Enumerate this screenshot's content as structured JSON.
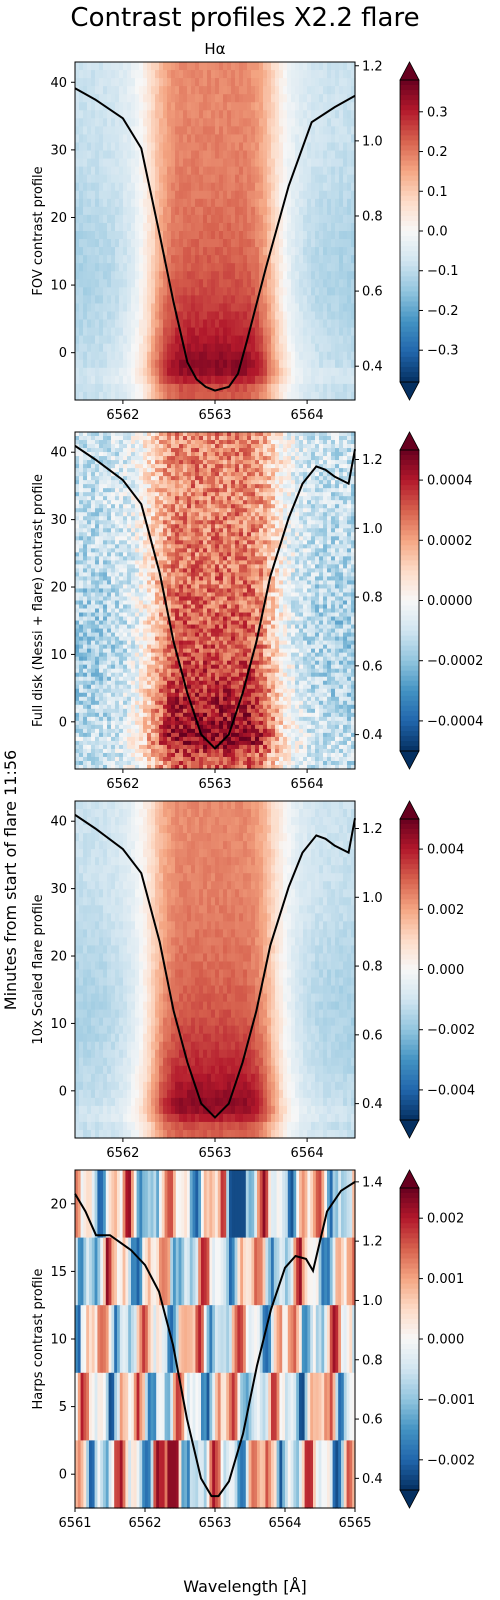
{
  "figure": {
    "title": "Contrast profiles X2.2 flare",
    "shared_ylabel": "Minutes from start of flare 11:56",
    "shared_xlabel": "Wavelength [Å]"
  },
  "chart_data": [
    {
      "type": "heatmap",
      "title": "Hα",
      "ylabel": "FOV contrast profile",
      "xlabel": "",
      "xlim": [
        6561.48,
        6564.52
      ],
      "ylim": [
        -7,
        43
      ],
      "xticks": [
        "6562",
        "6563",
        "6564"
      ],
      "yticks": [
        "0",
        "10",
        "20",
        "30",
        "40"
      ],
      "right_ylim": [
        0.31,
        1.21
      ],
      "right_yticks": [
        "0.4",
        "0.6",
        "0.8",
        "1.0",
        "1.2"
      ],
      "colorbar": {
        "min": -0.38,
        "max": 0.38,
        "cmap": "RdBu_r",
        "extend": "both",
        "ticks": [
          "−0.3",
          "−0.2",
          "−0.1",
          "0.0",
          "0.1",
          "0.2",
          "0.3"
        ],
        "tick_values": [
          -0.3,
          -0.2,
          -0.1,
          0.0,
          0.1,
          0.2,
          0.3
        ]
      },
      "profile": {
        "name": "line profile",
        "color": "#000000",
        "x": [
          6561.48,
          6561.7,
          6562.0,
          6562.2,
          6562.4,
          6562.55,
          6562.7,
          6562.8,
          6562.9,
          6563.0,
          6563.15,
          6563.25,
          6563.35,
          6563.55,
          6563.8,
          6564.05,
          6564.3,
          6564.52
        ],
        "y": [
          1.14,
          1.11,
          1.06,
          0.98,
          0.75,
          0.57,
          0.41,
          0.365,
          0.345,
          0.335,
          0.345,
          0.38,
          0.47,
          0.66,
          0.88,
          1.05,
          1.09,
          1.12
        ]
      }
    },
    {
      "type": "heatmap",
      "title": "",
      "ylabel": "Full disk (Nessi + flare) contrast profile",
      "xlabel": "",
      "xlim": [
        6561.48,
        6564.52
      ],
      "ylim": [
        -7,
        43
      ],
      "xticks": [
        "6562",
        "6563",
        "6564"
      ],
      "yticks": [
        "0",
        "10",
        "20",
        "30",
        "40"
      ],
      "right_ylim": [
        0.3,
        1.28
      ],
      "right_yticks": [
        "0.4",
        "0.6",
        "0.8",
        "1.0",
        "1.2"
      ],
      "colorbar": {
        "min": -0.0005,
        "max": 0.0005,
        "cmap": "RdBu_r",
        "extend": "both",
        "ticks": [
          "−0.0004",
          "−0.0002",
          "0.0000",
          "0.0002",
          "0.0004"
        ],
        "tick_values": [
          -0.0004,
          -0.0002,
          0.0,
          0.0002,
          0.0004
        ]
      },
      "profile": {
        "name": "line profile",
        "color": "#000000",
        "x": [
          6561.48,
          6561.7,
          6562.0,
          6562.2,
          6562.4,
          6562.55,
          6562.7,
          6562.85,
          6563.0,
          6563.15,
          6563.3,
          6563.45,
          6563.6,
          6563.8,
          6563.95,
          6564.1,
          6564.2,
          6564.3,
          6564.45,
          6564.52
        ],
        "y": [
          1.24,
          1.2,
          1.14,
          1.07,
          0.87,
          0.67,
          0.52,
          0.4,
          0.36,
          0.4,
          0.52,
          0.67,
          0.86,
          1.03,
          1.13,
          1.18,
          1.17,
          1.15,
          1.13,
          1.23
        ]
      }
    },
    {
      "type": "heatmap",
      "title": "",
      "ylabel": "10x Scaled flare profile",
      "xlabel": "",
      "xlim": [
        6561.48,
        6564.52
      ],
      "ylim": [
        -7,
        43
      ],
      "xticks": [
        "6562",
        "6563",
        "6564"
      ],
      "yticks": [
        "0",
        "10",
        "20",
        "30",
        "40"
      ],
      "right_ylim": [
        0.3,
        1.28
      ],
      "right_yticks": [
        "0.4",
        "0.6",
        "0.8",
        "1.0",
        "1.2"
      ],
      "colorbar": {
        "min": -0.005,
        "max": 0.005,
        "cmap": "RdBu_r",
        "extend": "both",
        "ticks": [
          "−0.004",
          "−0.002",
          "0.000",
          "0.002",
          "0.004"
        ],
        "tick_values": [
          -0.004,
          -0.002,
          0.0,
          0.002,
          0.004
        ]
      },
      "profile": {
        "name": "line profile",
        "color": "#000000",
        "x": [
          6561.48,
          6561.7,
          6562.0,
          6562.2,
          6562.4,
          6562.55,
          6562.7,
          6562.85,
          6563.0,
          6563.15,
          6563.3,
          6563.45,
          6563.6,
          6563.8,
          6563.95,
          6564.1,
          6564.2,
          6564.3,
          6564.45,
          6564.52
        ],
        "y": [
          1.24,
          1.2,
          1.14,
          1.07,
          0.87,
          0.67,
          0.52,
          0.4,
          0.36,
          0.4,
          0.52,
          0.67,
          0.86,
          1.03,
          1.13,
          1.18,
          1.17,
          1.15,
          1.13,
          1.23
        ]
      }
    },
    {
      "type": "heatmap",
      "title": "",
      "ylabel": "Harps contrast profile",
      "xlabel": "Wavelength [Å]",
      "xlim": [
        6561,
        6565
      ],
      "ylim": [
        -2.5,
        22.5
      ],
      "xticks": [
        "6561",
        "6562",
        "6563",
        "6564",
        "6565"
      ],
      "yticks": [
        "0",
        "5",
        "10",
        "15",
        "20"
      ],
      "right_ylim": [
        0.3,
        1.44
      ],
      "right_yticks": [
        "0.4",
        "0.6",
        "0.8",
        "1.0",
        "1.2",
        "1.4"
      ],
      "colorbar": {
        "min": -0.0025,
        "max": 0.0025,
        "cmap": "RdBu_r",
        "extend": "both",
        "ticks": [
          "−0.002",
          "−0.001",
          "0.000",
          "0.001",
          "0.002"
        ],
        "tick_values": [
          -0.002,
          -0.001,
          0.0,
          0.001,
          0.002
        ]
      },
      "rows": 5,
      "profile": {
        "name": "line profile",
        "color": "#000000",
        "x": [
          6561.0,
          6561.15,
          6561.3,
          6561.5,
          6561.8,
          6562.0,
          6562.2,
          6562.4,
          6562.6,
          6562.8,
          6562.95,
          6563.05,
          6563.2,
          6563.4,
          6563.6,
          6563.8,
          6564.0,
          6564.15,
          6564.3,
          6564.4,
          6564.6,
          6564.8,
          6565.0
        ],
        "y": [
          1.36,
          1.3,
          1.22,
          1.22,
          1.17,
          1.12,
          1.03,
          0.85,
          0.6,
          0.4,
          0.34,
          0.34,
          0.39,
          0.55,
          0.78,
          0.97,
          1.11,
          1.15,
          1.14,
          1.1,
          1.3,
          1.37,
          1.4
        ]
      }
    }
  ]
}
